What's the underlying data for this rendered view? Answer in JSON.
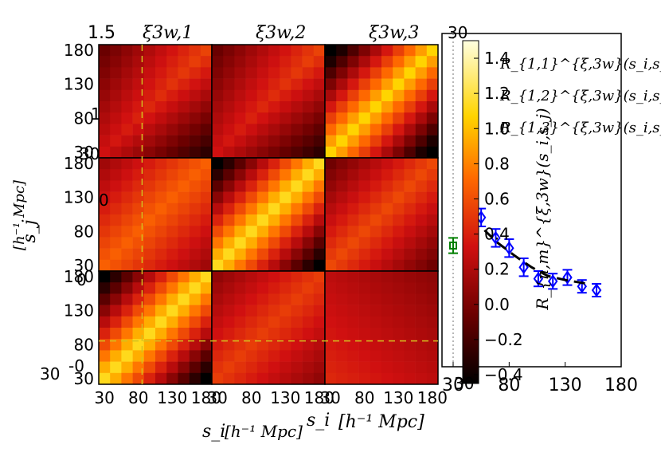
{
  "chart_data": [
    {
      "type": "line",
      "xlim": [
        30,
        180
      ],
      "xticks": [
        "30",
        "80",
        "130",
        "180"
      ],
      "series": [
        {
          "name": "",
          "marker": "square",
          "color": "#008000",
          "points": [
            {
              "x": 30,
              "y": 0.2,
              "err": 0.06
            }
          ]
        },
        {
          "name": "",
          "marker": "diamond",
          "color": "#0000ff",
          "points": [
            {
              "x": 45,
              "y": 0.52,
              "err": 0.08
            },
            {
              "x": 55,
              "y": 0.42,
              "err": 0.07
            },
            {
              "x": 68,
              "y": 0.26,
              "err": 0.07
            },
            {
              "x": 80,
              "y": 0.18,
              "err": 0.07
            },
            {
              "x": 93,
              "y": 0.03,
              "err": 0.07
            },
            {
              "x": 106,
              "y": -0.06,
              "err": 0.06
            },
            {
              "x": 119,
              "y": -0.08,
              "err": 0.06
            },
            {
              "x": 132,
              "y": -0.05,
              "err": 0.06
            },
            {
              "x": 145,
              "y": -0.12,
              "err": 0.05
            },
            {
              "x": 158,
              "y": -0.15,
              "err": 0.05
            }
          ]
        },
        {
          "name": "",
          "style": "dashed",
          "color": "#000000",
          "points": [
            {
              "x": 58,
              "y": 0.32
            },
            {
              "x": 70,
              "y": 0.22
            },
            {
              "x": 85,
              "y": 0.12
            },
            {
              "x": 100,
              "y": 0.03
            },
            {
              "x": 115,
              "y": -0.04
            },
            {
              "x": 130,
              "y": -0.07
            },
            {
              "x": 150,
              "y": -0.1
            }
          ]
        }
      ]
    },
    {
      "type": "heatmap",
      "ylim_label": "1.5",
      "panel_titles": [
        "ξ3w,1",
        "ξ3w,2",
        "ξ3w,3"
      ],
      "tick_labels": [
        "30",
        "80",
        "130",
        "180"
      ],
      "xlabel_main": "s_i",
      "xlabel_units": "[h⁻¹ Mpc]",
      "ylabel_main": "s_j",
      "ylabel_units": "[h⁻¹ Mpc]",
      "overlap_labels": [
        "0",
        "-0",
        "1",
        "0",
        "30",
        "30",
        "30",
        "30"
      ],
      "panel_grid": [
        [
          [
            1.0,
            0.8,
            0.6,
            0.4,
            0.3,
            0.2,
            0.1,
            0.1,
            0.0,
            -0.1
          ],
          [
            0.8,
            1.0,
            0.8,
            0.6,
            0.4,
            0.3,
            0.2,
            0.1,
            0.1,
            0.0
          ],
          [
            0.6,
            0.8,
            1.0,
            0.8,
            0.6,
            0.4,
            0.3,
            0.2,
            0.1,
            0.1
          ],
          [
            0.4,
            0.6,
            0.8,
            1.0,
            0.8,
            0.6,
            0.4,
            0.3,
            0.2,
            0.1
          ],
          [
            0.3,
            0.4,
            0.6,
            0.8,
            1.0,
            0.8,
            0.6,
            0.4,
            0.3,
            0.2
          ],
          [
            0.2,
            0.3,
            0.4,
            0.6,
            0.8,
            1.0,
            0.8,
            0.6,
            0.4,
            0.3
          ],
          [
            0.1,
            0.2,
            0.3,
            0.4,
            0.6,
            0.8,
            1.0,
            0.8,
            0.6,
            0.4
          ],
          [
            0.1,
            0.1,
            0.2,
            0.3,
            0.4,
            0.6,
            0.8,
            1.0,
            0.8,
            0.6
          ],
          [
            0.0,
            0.1,
            0.1,
            0.2,
            0.3,
            0.4,
            0.6,
            0.8,
            1.0,
            0.8
          ],
          [
            -0.1,
            0.0,
            0.1,
            0.1,
            0.2,
            0.3,
            0.4,
            0.6,
            0.8,
            1.0
          ]
        ]
      ],
      "guides": {
        "x": 80,
        "y": 80
      }
    },
    {
      "type": "colorbar",
      "ticks": [
        "1.4",
        "1.2",
        "1.0",
        "0.8",
        "0.6",
        "0.4",
        "0.2",
        "0.0",
        "−0.2",
        "−0.4"
      ],
      "range": [
        -0.45,
        1.5
      ],
      "ylabel": "R_{n,m}^{ξ,3w}(s_i,s_j)",
      "legend": [
        "R_{1,1}^{ξ,3w}(s_i,s_j)",
        "R_{1,2}^{ξ,3w}(s_i,s_j)",
        "R_{1,3}^{ξ,3w}(s_i,s_j)"
      ]
    }
  ]
}
